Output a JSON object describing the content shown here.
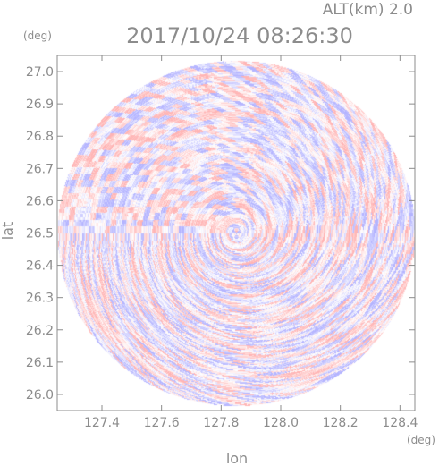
{
  "header": {
    "altitude_label": "ALT(km) 2.0",
    "timestamp": "2017/10/24 08:26:30"
  },
  "chart_data": {
    "type": "heatmap",
    "title": "2017/10/24 08:26:30",
    "subtitle": "ALT(km) 2.0",
    "xlabel": "lon",
    "ylabel": "lat",
    "x_unit": "(deg)",
    "y_unit": "(deg)",
    "xlim": [
      127.25,
      128.45
    ],
    "ylim": [
      25.95,
      27.05
    ],
    "x_ticks": [
      127.4,
      127.6,
      127.8,
      128.0,
      128.2,
      128.4
    ],
    "x_tick_labels": [
      "127.4",
      "127.6",
      "127.8",
      "128.0",
      "128.2",
      "128.4"
    ],
    "y_ticks": [
      26.0,
      26.1,
      26.2,
      26.3,
      26.4,
      26.5,
      26.6,
      26.7,
      26.8,
      26.9,
      27.0
    ],
    "y_tick_labels": [
      "26.0",
      "26.1",
      "26.2",
      "26.3",
      "26.4",
      "26.5",
      "26.6",
      "26.7",
      "26.8",
      "26.9",
      "27.0"
    ],
    "domain": {
      "shape": "circle",
      "center_lon": 127.85,
      "center_lat": 26.5,
      "radius_lon": 0.6,
      "radius_lat": 0.535
    },
    "colors": {
      "positive": "#ffb4b4",
      "negative": "#b4b4ff",
      "zero": "#ffffff",
      "axis": "#8c8c8c"
    },
    "grid": false
  }
}
